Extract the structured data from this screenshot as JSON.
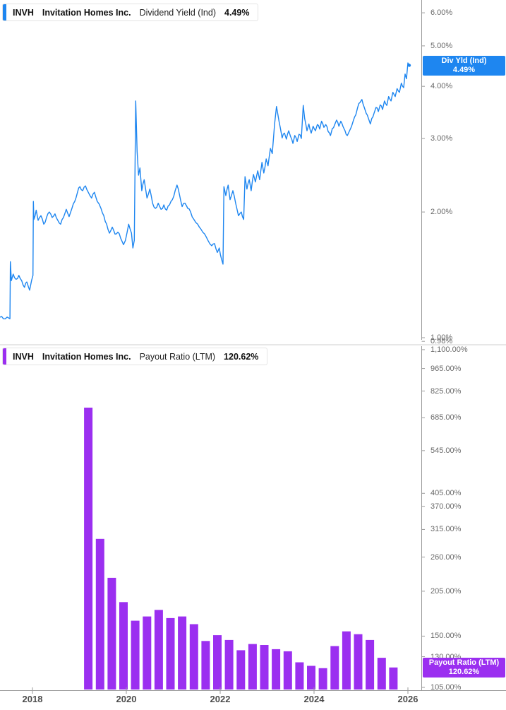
{
  "colors": {
    "blue": "#1e86f0",
    "purple": "#9b2ff0",
    "axis_line": "#9a9a9a",
    "tick_text": "#6a6a6a",
    "year_text": "#4d4d4d"
  },
  "panels": {
    "dividend_yield": {
      "ticker": "INVH",
      "company": "Invitation Homes Inc.",
      "metric": "Dividend Yield (Ind)",
      "value": "4.49%",
      "badge_line1": "Div Yld (Ind)",
      "badge_line2": "4.49%"
    },
    "payout_ratio": {
      "ticker": "INVH",
      "company": "Invitation Homes Inc.",
      "metric": "Payout Ratio (LTM)",
      "value": "120.62%",
      "badge_line1": "Payout Ratio (LTM)",
      "badge_line2": "120.62%"
    }
  },
  "x_axis": {
    "tick_years": [
      2018,
      2020,
      2022,
      2024,
      2026
    ],
    "tick_labels": [
      "2018",
      "2020",
      "2022",
      "2024",
      "2026"
    ]
  },
  "chart_data": [
    {
      "type": "line",
      "title": "INVH Dividend Yield (Ind)",
      "series_name": "Div Yld (Ind)",
      "unit": "%",
      "y_scale": "log",
      "last_value": 4.49,
      "ylim": [
        0.98,
        6.3
      ],
      "y_ticks": [
        {
          "label": "6.00%",
          "value": 6
        },
        {
          "label": "5.00%",
          "value": 5
        },
        {
          "label": "4.00%",
          "value": 4
        },
        {
          "label": "3.00%",
          "value": 3
        },
        {
          "label": "2.00%",
          "value": 2
        },
        {
          "label": "1.00%",
          "value": 1
        },
        {
          "label": "0.98%",
          "value": 0.98
        }
      ],
      "points": [
        [
          2017.31,
          1.12
        ],
        [
          2017.38,
          1.11
        ],
        [
          2017.46,
          1.12
        ],
        [
          2017.52,
          1.11
        ],
        [
          2017.53,
          1.52
        ],
        [
          2017.55,
          1.37
        ],
        [
          2017.59,
          1.42
        ],
        [
          2017.65,
          1.38
        ],
        [
          2017.71,
          1.41
        ],
        [
          2017.77,
          1.37
        ],
        [
          2017.83,
          1.32
        ],
        [
          2017.88,
          1.36
        ],
        [
          2017.94,
          1.3
        ],
        [
          2017.98,
          1.37
        ],
        [
          2018.01,
          1.41
        ],
        [
          2018.02,
          2.12
        ],
        [
          2018.03,
          1.92
        ],
        [
          2018.08,
          2.02
        ],
        [
          2018.12,
          1.91
        ],
        [
          2018.18,
          1.96
        ],
        [
          2018.24,
          1.87
        ],
        [
          2018.3,
          1.94
        ],
        [
          2018.36,
          2.0
        ],
        [
          2018.42,
          1.94
        ],
        [
          2018.48,
          1.98
        ],
        [
          2018.54,
          1.91
        ],
        [
          2018.6,
          1.87
        ],
        [
          2018.66,
          1.94
        ],
        [
          2018.72,
          2.03
        ],
        [
          2018.78,
          1.95
        ],
        [
          2018.84,
          2.04
        ],
        [
          2018.9,
          2.12
        ],
        [
          2018.96,
          2.23
        ],
        [
          2019.01,
          2.3
        ],
        [
          2019.07,
          2.25
        ],
        [
          2019.13,
          2.31
        ],
        [
          2019.19,
          2.23
        ],
        [
          2019.26,
          2.16
        ],
        [
          2019.32,
          2.23
        ],
        [
          2019.38,
          2.12
        ],
        [
          2019.46,
          2.04
        ],
        [
          2019.52,
          1.96
        ],
        [
          2019.58,
          1.87
        ],
        [
          2019.64,
          1.78
        ],
        [
          2019.7,
          1.84
        ],
        [
          2019.76,
          1.77
        ],
        [
          2019.82,
          1.79
        ],
        [
          2019.88,
          1.73
        ],
        [
          2019.94,
          1.67
        ],
        [
          2019.98,
          1.71
        ],
        [
          2020.05,
          1.87
        ],
        [
          2020.11,
          1.78
        ],
        [
          2020.14,
          1.64
        ],
        [
          2020.17,
          1.71
        ],
        [
          2020.2,
          3.69
        ],
        [
          2020.23,
          2.79
        ],
        [
          2020.26,
          2.45
        ],
        [
          2020.29,
          2.55
        ],
        [
          2020.33,
          2.25
        ],
        [
          2020.38,
          2.39
        ],
        [
          2020.44,
          2.16
        ],
        [
          2020.5,
          2.27
        ],
        [
          2020.56,
          2.1
        ],
        [
          2020.62,
          2.04
        ],
        [
          2020.68,
          2.1
        ],
        [
          2020.74,
          2.03
        ],
        [
          2020.8,
          2.08
        ],
        [
          2020.86,
          2.02
        ],
        [
          2020.92,
          2.08
        ],
        [
          2020.98,
          2.14
        ],
        [
          2021.04,
          2.25
        ],
        [
          2021.08,
          2.32
        ],
        [
          2021.13,
          2.21
        ],
        [
          2021.19,
          2.06
        ],
        [
          2021.25,
          2.1
        ],
        [
          2021.31,
          2.04
        ],
        [
          2021.37,
          2.0
        ],
        [
          2021.44,
          1.92
        ],
        [
          2021.52,
          1.87
        ],
        [
          2021.59,
          1.82
        ],
        [
          2021.67,
          1.77
        ],
        [
          2021.74,
          1.71
        ],
        [
          2021.82,
          1.66
        ],
        [
          2021.88,
          1.68
        ],
        [
          2021.94,
          1.6
        ],
        [
          2021.98,
          1.64
        ],
        [
          2022.03,
          1.54
        ],
        [
          2022.06,
          1.5
        ],
        [
          2022.08,
          2.3
        ],
        [
          2022.12,
          2.19
        ],
        [
          2022.17,
          2.32
        ],
        [
          2022.21,
          2.14
        ],
        [
          2022.27,
          2.25
        ],
        [
          2022.33,
          2.1
        ],
        [
          2022.39,
          1.96
        ],
        [
          2022.45,
          2.0
        ],
        [
          2022.5,
          1.92
        ],
        [
          2022.53,
          2.43
        ],
        [
          2022.57,
          2.27
        ],
        [
          2022.62,
          2.39
        ],
        [
          2022.66,
          2.25
        ],
        [
          2022.71,
          2.46
        ],
        [
          2022.75,
          2.36
        ],
        [
          2022.8,
          2.51
        ],
        [
          2022.84,
          2.39
        ],
        [
          2022.89,
          2.63
        ],
        [
          2022.93,
          2.48
        ],
        [
          2022.98,
          2.68
        ],
        [
          2023.02,
          2.58
        ],
        [
          2023.07,
          2.84
        ],
        [
          2023.11,
          2.76
        ],
        [
          2023.16,
          3.25
        ],
        [
          2023.2,
          3.58
        ],
        [
          2023.23,
          3.42
        ],
        [
          2023.28,
          3.19
        ],
        [
          2023.32,
          3.01
        ],
        [
          2023.37,
          3.09
        ],
        [
          2023.41,
          2.99
        ],
        [
          2023.46,
          3.13
        ],
        [
          2023.5,
          3.03
        ],
        [
          2023.55,
          2.92
        ],
        [
          2023.59,
          3.05
        ],
        [
          2023.64,
          2.95
        ],
        [
          2023.68,
          3.07
        ],
        [
          2023.73,
          3.0
        ],
        [
          2023.77,
          3.6
        ],
        [
          2023.8,
          3.35
        ],
        [
          2023.85,
          3.13
        ],
        [
          2023.89,
          3.25
        ],
        [
          2023.94,
          3.09
        ],
        [
          2023.98,
          3.21
        ],
        [
          2024.03,
          3.13
        ],
        [
          2024.07,
          3.24
        ],
        [
          2024.12,
          3.16
        ],
        [
          2024.16,
          3.3
        ],
        [
          2024.21,
          3.19
        ],
        [
          2024.25,
          3.24
        ],
        [
          2024.3,
          3.12
        ],
        [
          2024.35,
          3.05
        ],
        [
          2024.39,
          3.17
        ],
        [
          2024.44,
          3.24
        ],
        [
          2024.48,
          3.32
        ],
        [
          2024.53,
          3.21
        ],
        [
          2024.57,
          3.3
        ],
        [
          2024.62,
          3.2
        ],
        [
          2024.66,
          3.13
        ],
        [
          2024.71,
          3.05
        ],
        [
          2024.75,
          3.12
        ],
        [
          2024.8,
          3.21
        ],
        [
          2024.84,
          3.32
        ],
        [
          2024.89,
          3.42
        ],
        [
          2024.93,
          3.56
        ],
        [
          2024.98,
          3.66
        ],
        [
          2025.02,
          3.72
        ],
        [
          2025.07,
          3.56
        ],
        [
          2025.11,
          3.45
        ],
        [
          2025.16,
          3.35
        ],
        [
          2025.2,
          3.25
        ],
        [
          2025.23,
          3.35
        ],
        [
          2025.28,
          3.45
        ],
        [
          2025.32,
          3.56
        ],
        [
          2025.37,
          3.48
        ],
        [
          2025.41,
          3.61
        ],
        [
          2025.46,
          3.52
        ],
        [
          2025.5,
          3.69
        ],
        [
          2025.55,
          3.6
        ],
        [
          2025.59,
          3.78
        ],
        [
          2025.64,
          3.69
        ],
        [
          2025.68,
          3.87
        ],
        [
          2025.73,
          3.78
        ],
        [
          2025.77,
          3.95
        ],
        [
          2025.82,
          3.87
        ],
        [
          2025.86,
          4.07
        ],
        [
          2025.91,
          3.97
        ],
        [
          2025.94,
          4.28
        ],
        [
          2025.97,
          4.17
        ],
        [
          2026.0,
          4.55
        ],
        [
          2026.03,
          4.49
        ]
      ]
    },
    {
      "type": "bar",
      "title": "INVH Payout Ratio (LTM)",
      "series_name": "Payout Ratio (LTM)",
      "unit": "%",
      "y_scale": "log",
      "last_value": 120.62,
      "ylim": [
        105,
        1150
      ],
      "y_ticks": [
        {
          "label": "1,100.00%",
          "value": 1100
        },
        {
          "label": "965.00%",
          "value": 965
        },
        {
          "label": "825.00%",
          "value": 825
        },
        {
          "label": "685.00%",
          "value": 685
        },
        {
          "label": "545.00%",
          "value": 545
        },
        {
          "label": "405.00%",
          "value": 405
        },
        {
          "label": "370.00%",
          "value": 370
        },
        {
          "label": "315.00%",
          "value": 315
        },
        {
          "label": "260.00%",
          "value": 260
        },
        {
          "label": "205.00%",
          "value": 205
        },
        {
          "label": "150.00%",
          "value": 150
        },
        {
          "label": "130.00%",
          "value": 130
        },
        {
          "label": "105.00%",
          "value": 105
        }
      ],
      "categories": [
        "2019 Q1",
        "2019 Q2",
        "2019 Q3",
        "2019 Q4",
        "2020 Q1",
        "2020 Q2",
        "2020 Q3",
        "2020 Q4",
        "2021 Q1",
        "2021 Q2",
        "2021 Q3",
        "2021 Q4",
        "2022 Q1",
        "2022 Q2",
        "2022 Q3",
        "2022 Q4",
        "2023 Q1",
        "2023 Q2",
        "2023 Q3",
        "2023 Q4",
        "2024 Q1",
        "2024 Q2",
        "2024 Q3",
        "2024 Q4",
        "2025 Q1",
        "2025 Q2",
        "2025 Q3"
      ],
      "values": [
        735,
        295,
        225,
        190,
        167,
        172,
        180,
        170,
        172,
        163,
        145,
        151,
        146,
        136,
        142,
        141,
        137,
        135,
        125,
        122,
        120,
        140,
        155,
        152,
        146,
        129,
        120.62
      ]
    }
  ]
}
